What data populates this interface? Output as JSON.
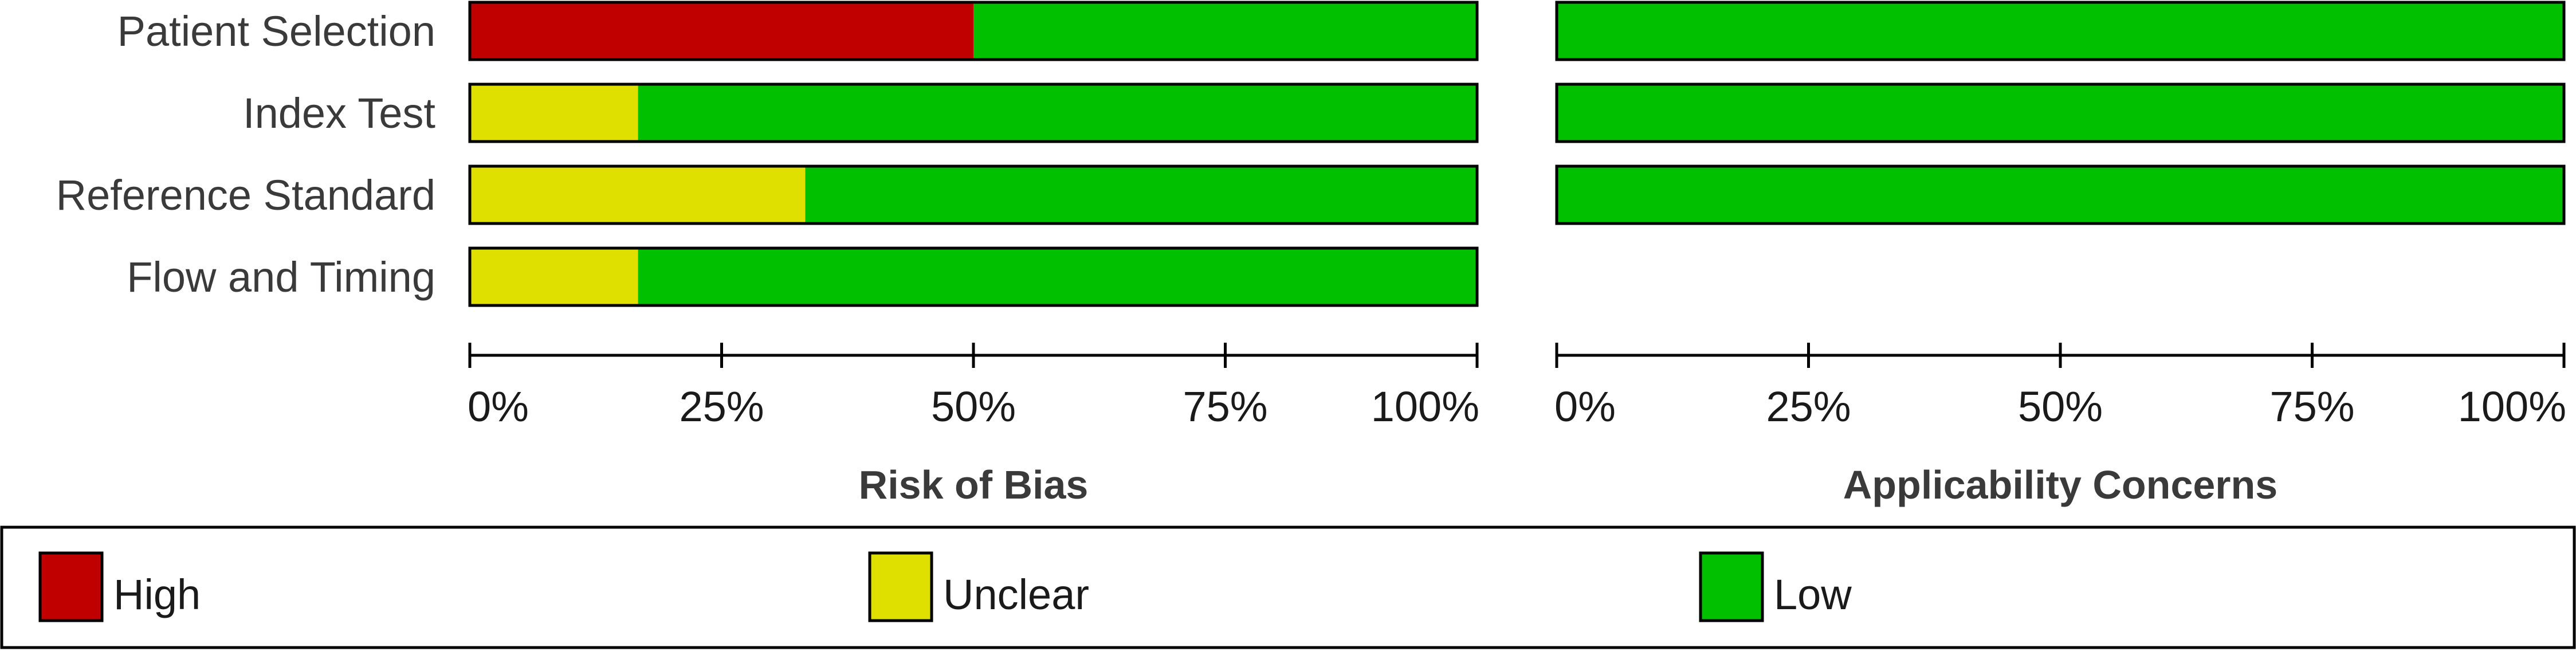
{
  "chart_data": {
    "type": "bar",
    "orientation": "horizontal",
    "stacked": true,
    "categories": [
      "Patient Selection",
      "Index Test",
      "Reference Standard",
      "Flow and Timing"
    ],
    "panels": [
      {
        "title": "Risk of Bias",
        "xlim": [
          0,
          100
        ],
        "ticks": [
          "0%",
          "25%",
          "50%",
          "75%",
          "100%"
        ],
        "series": [
          {
            "name": "High",
            "values": [
              50,
              0,
              0,
              0
            ]
          },
          {
            "name": "Unclear",
            "values": [
              0,
              16.7,
              33.3,
              16.7
            ]
          },
          {
            "name": "Low",
            "values": [
              50,
              83.3,
              66.7,
              83.3
            ]
          }
        ]
      },
      {
        "title": "Applicability Concerns",
        "xlim": [
          0,
          100
        ],
        "ticks": [
          "0%",
          "25%",
          "50%",
          "75%",
          "100%"
        ],
        "series": [
          {
            "name": "High",
            "values": [
              0,
              0,
              0,
              null
            ]
          },
          {
            "name": "Unclear",
            "values": [
              0,
              0,
              0,
              null
            ]
          },
          {
            "name": "Low",
            "values": [
              100,
              100,
              100,
              null
            ]
          }
        ]
      }
    ],
    "legend": {
      "placement": "bottom",
      "entries": [
        "High",
        "Unclear",
        "Low"
      ]
    },
    "colors": {
      "High": "#c00000",
      "Unclear": "#e0e000",
      "Low": "#00c000"
    }
  }
}
